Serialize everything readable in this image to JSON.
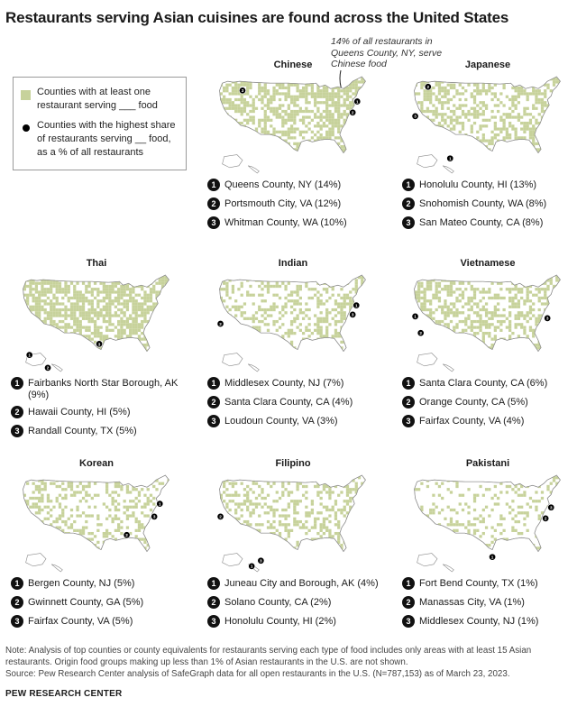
{
  "title": "Restaurants serving Asian cuisines are found across the United States",
  "legend": {
    "fill_label": "Counties with at least one restaurant serving ___ food",
    "dot_label": "Counties with the highest share of restaurants serving __ food, as a % of all restaurants",
    "fill_color": "#c7d29b",
    "dot_color": "#000000"
  },
  "annotation": "14% of all restaurants in Queens County, NY, serve Chinese food",
  "panels": [
    {
      "cuisine": "Chinese",
      "ranks": [
        {
          "n": "1",
          "text": "Queens County, NY (14%)"
        },
        {
          "n": "2",
          "text": "Portsmouth City, VA (12%)"
        },
        {
          "n": "3",
          "text": "Whitman County, WA (10%)"
        }
      ]
    },
    {
      "cuisine": "Japanese",
      "ranks": [
        {
          "n": "1",
          "text": "Honolulu County, HI (13%)"
        },
        {
          "n": "2",
          "text": "Snohomish County, WA (8%)"
        },
        {
          "n": "3",
          "text": "San Mateo County, CA (8%)"
        }
      ]
    },
    {
      "cuisine": "Thai",
      "ranks": [
        {
          "n": "1",
          "text": "Fairbanks North Star Borough, AK (9%)"
        },
        {
          "n": "2",
          "text": "Hawaii County, HI (5%)"
        },
        {
          "n": "3",
          "text": "Randall County, TX (5%)"
        }
      ]
    },
    {
      "cuisine": "Indian",
      "ranks": [
        {
          "n": "1",
          "text": "Middlesex County, NJ (7%)"
        },
        {
          "n": "2",
          "text": "Santa Clara County, CA (4%)"
        },
        {
          "n": "3",
          "text": "Loudoun County, VA (3%)"
        }
      ]
    },
    {
      "cuisine": "Vietnamese",
      "ranks": [
        {
          "n": "1",
          "text": "Santa Clara County, CA (6%)"
        },
        {
          "n": "2",
          "text": "Orange County, CA (5%)"
        },
        {
          "n": "3",
          "text": "Fairfax County, VA (4%)"
        }
      ]
    },
    {
      "cuisine": "Korean",
      "ranks": [
        {
          "n": "1",
          "text": "Bergen County, NJ (5%)"
        },
        {
          "n": "2",
          "text": "Gwinnett County, GA (5%)"
        },
        {
          "n": "3",
          "text": "Fairfax County, VA (5%)"
        }
      ]
    },
    {
      "cuisine": "Filipino",
      "ranks": [
        {
          "n": "1",
          "text": "Juneau City and Borough, AK (4%)"
        },
        {
          "n": "2",
          "text": "Solano County, CA (2%)"
        },
        {
          "n": "3",
          "text": "Honolulu County, HI (2%)"
        }
      ]
    },
    {
      "cuisine": "Pakistani",
      "ranks": [
        {
          "n": "1",
          "text": "Fort Bend County, TX (1%)"
        },
        {
          "n": "2",
          "text": "Manassas City, VA (1%)"
        },
        {
          "n": "3",
          "text": "Middlesex County, NJ (1%)"
        }
      ]
    }
  ],
  "note": "Note: Analysis of top counties or county equivalents for restaurants serving each type of food includes only areas with at least 15 Asian restaurants. Origin food groups making up less than 1% of Asian restaurants in the U.S. are not shown.",
  "source": "Source: Pew Research Center analysis of SafeGraph data for all open restaurants in the U.S. (N=787,153) as of March 23, 2023.",
  "brand": "PEW RESEARCH CENTER"
}
